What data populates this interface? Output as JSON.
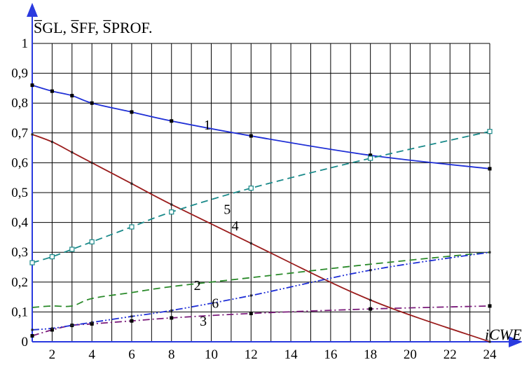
{
  "chart_data": {
    "type": "line",
    "ylabel": "S̅GL, S̅FF, S̅PROF.",
    "xlabel": "iCWE",
    "xlim": [
      1,
      24
    ],
    "ylim": [
      0,
      1
    ],
    "grid": true,
    "x_ticks": [
      2,
      4,
      6,
      8,
      10,
      12,
      14,
      16,
      18,
      20,
      22,
      24
    ],
    "y_ticks": [
      0,
      0.1,
      0.2,
      0.3,
      0.4,
      0.5,
      0.6,
      0.7,
      0.8,
      0.9,
      1
    ],
    "y_tick_labels": [
      "0",
      "0,1",
      "0,2",
      "0,3",
      "0,4",
      "0,5",
      "0,6",
      "0,7",
      "0,8",
      "0,9",
      "1"
    ],
    "series": [
      {
        "name": "1",
        "color": "#1f2fd6",
        "dash": "solid",
        "marker": "filled-square",
        "x": [
          1,
          2,
          3,
          4,
          6,
          8,
          12,
          18,
          24
        ],
        "y": [
          0.86,
          0.84,
          0.825,
          0.8,
          0.77,
          0.74,
          0.69,
          0.625,
          0.58
        ],
        "label_at": [
          9.8,
          0.728
        ]
      },
      {
        "name": "2",
        "color": "#2a8a2a",
        "dash": "dashed",
        "marker": "none",
        "x": [
          1,
          2,
          3,
          4,
          6,
          8,
          12,
          18,
          24
        ],
        "y": [
          0.115,
          0.12,
          0.12,
          0.145,
          0.165,
          0.185,
          0.215,
          0.26,
          0.3
        ],
        "label_at": [
          9.3,
          0.19
        ]
      },
      {
        "name": "3",
        "color": "#7a1a7a",
        "dash": "dashdot",
        "marker": "filled-square",
        "x": [
          1,
          2,
          3,
          4,
          6,
          8,
          12,
          18,
          24
        ],
        "y": [
          0.02,
          0.04,
          0.055,
          0.06,
          0.07,
          0.08,
          0.095,
          0.11,
          0.12
        ],
        "label_at": [
          9.6,
          0.07
        ]
      },
      {
        "name": "4",
        "color": "#9a1c1c",
        "dash": "solid",
        "marker": "tick",
        "x": [
          1,
          2,
          3,
          4,
          6,
          8,
          12,
          18,
          24
        ],
        "y": [
          0.695,
          0.67,
          0.635,
          0.6,
          0.53,
          0.46,
          0.33,
          0.14,
          0.0
        ],
        "label_at": [
          11.2,
          0.39
        ]
      },
      {
        "name": "5",
        "color": "#1a8a8a",
        "dash": "dashed",
        "marker": "open-square",
        "x": [
          1,
          2,
          3,
          4,
          6,
          8,
          12,
          18,
          24
        ],
        "y": [
          0.265,
          0.285,
          0.31,
          0.335,
          0.385,
          0.435,
          0.515,
          0.615,
          0.705
        ],
        "label_at": [
          10.8,
          0.445
        ]
      },
      {
        "name": "6",
        "color": "#1f2fd6",
        "dash": "dashdotdot",
        "marker": "tick",
        "x": [
          1,
          2,
          3,
          4,
          6,
          8,
          12,
          18,
          24
        ],
        "y": [
          0.04,
          0.045,
          0.055,
          0.065,
          0.085,
          0.105,
          0.155,
          0.24,
          0.3
        ],
        "label_at": [
          10.2,
          0.13
        ]
      }
    ]
  }
}
